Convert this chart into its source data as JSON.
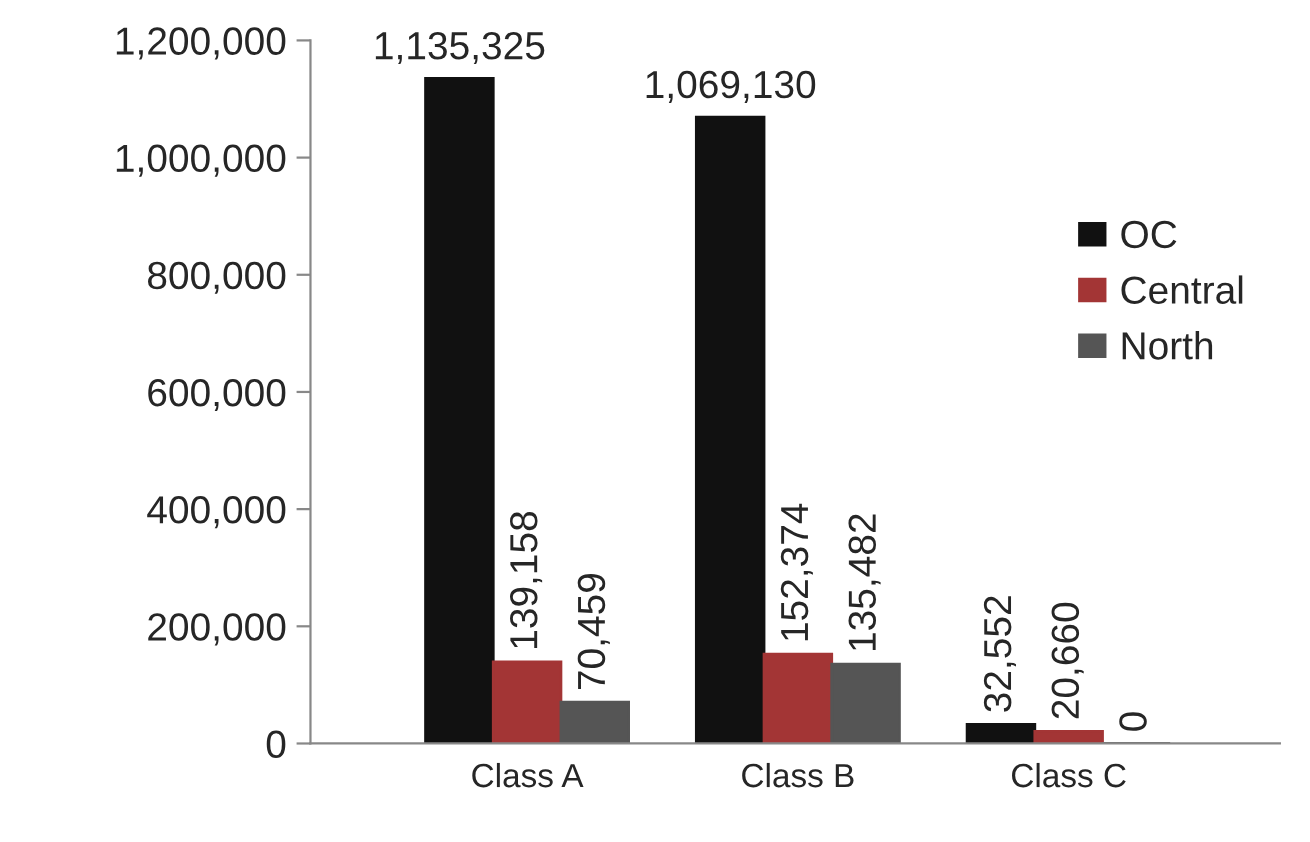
{
  "chart_data": {
    "type": "bar",
    "categories": [
      "Class A",
      "Class B",
      "Class C"
    ],
    "series": [
      {
        "name": "OC",
        "color": "#111111",
        "values": [
          1135325,
          1069130,
          32552
        ],
        "value_labels": [
          "1,135,325",
          "1,069,130",
          "32,552"
        ]
      },
      {
        "name": "Central",
        "color": "#a33535",
        "values": [
          139158,
          152374,
          20660
        ],
        "value_labels": [
          "139,158",
          "152,374",
          "20,660"
        ]
      },
      {
        "name": "North",
        "color": "#555555",
        "values": [
          70459,
          135482,
          0
        ],
        "value_labels": [
          "70,459",
          "135,482",
          "0"
        ]
      }
    ],
    "ylim": [
      0,
      1200000
    ],
    "yticks": [
      {
        "value": 0,
        "label": "0"
      },
      {
        "value": 200000,
        "label": "200,000"
      },
      {
        "value": 400000,
        "label": "400,000"
      },
      {
        "value": 600000,
        "label": "600,000"
      },
      {
        "value": 800000,
        "label": "800,000"
      },
      {
        "value": 1000000,
        "label": "1,000,000"
      },
      {
        "value": 1200000,
        "label": "1,200,000"
      }
    ],
    "legend": "right",
    "grid": false
  }
}
